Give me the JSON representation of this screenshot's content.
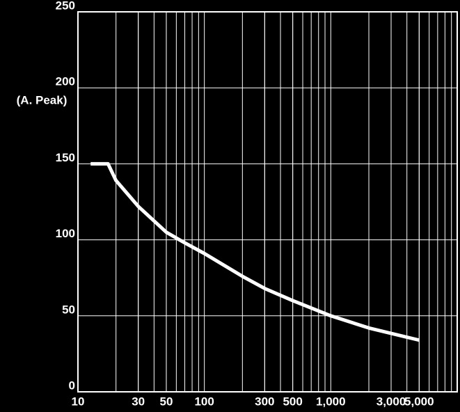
{
  "chart_data": {
    "type": "line",
    "y_label": "(A. Peak)",
    "log_x": true,
    "grid": true,
    "minor_grid": true,
    "xlim": [
      10,
      10000
    ],
    "xticks": [
      10,
      30,
      50,
      100,
      300,
      500,
      {
        "value": 1000,
        "label": "1,000"
      },
      {
        "value": 3000,
        "label": "3,000"
      },
      {
        "value": 5000,
        "label": "5,000"
      }
    ],
    "ylim": [
      0,
      250
    ],
    "yticks": [
      0,
      50,
      100,
      150,
      200,
      250
    ],
    "series": [
      {
        "color": "#ffffff",
        "x": [
          12.6,
          17.3,
          20,
          30,
          50,
          70,
          100,
          200,
          300,
          500,
          1000,
          2000,
          5000
        ],
        "values": [
          150,
          150,
          139,
          122,
          105,
          98,
          91,
          76,
          68,
          60,
          50,
          42,
          34
        ]
      }
    ]
  }
}
